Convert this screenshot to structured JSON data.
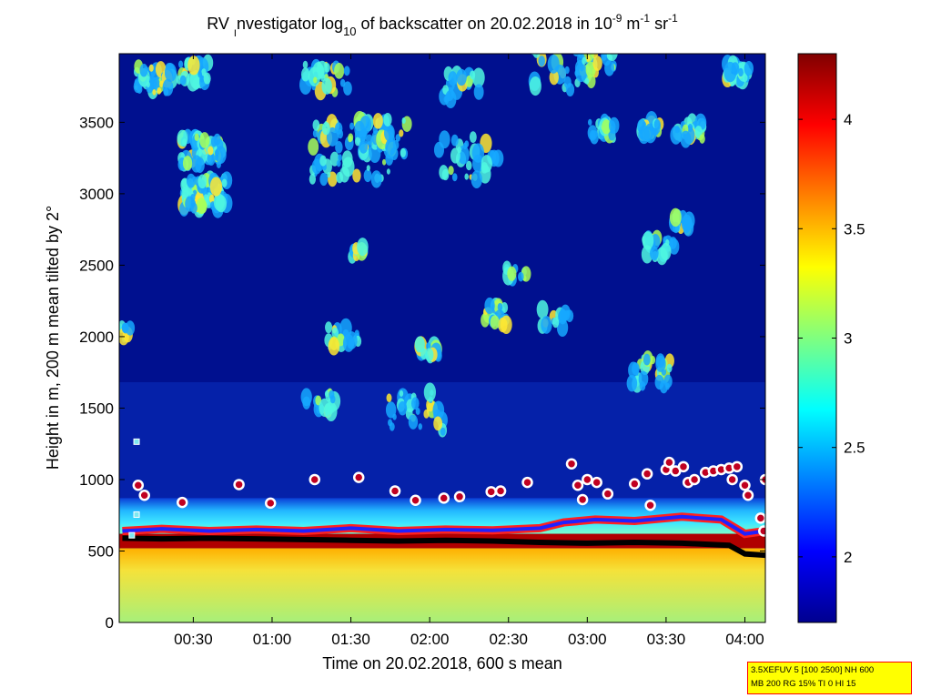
{
  "title": {
    "prefix": "RV ",
    "investigator_i": "I",
    "rest1": "nvestigator log",
    "sub10": "10",
    "rest2": " of backscatter on 20.02.2018 in 10",
    "exp1": "-9",
    "rest3": " m",
    "exp2": "-1",
    "rest4": " sr",
    "exp3": "-1"
  },
  "info_box": {
    "line1": "3.5XEFUV 5 [100 2500] NH 600",
    "line2": "MB 200 RG 15% TI 0 HI 15"
  },
  "chart_data": {
    "type": "heatmap",
    "title": "RV Investigator log10 of backscatter on 20.02.2018 in 10^-9 m^-1 sr^-1",
    "xlabel": "Time on 20.02.2018, 600 s mean",
    "ylabel": "Height in m, 200 m mean tilted by 2°",
    "x_tick_labels": [
      "00:30",
      "01:00",
      "01:30",
      "02:00",
      "02:30",
      "03:00",
      "03:30",
      "04:00"
    ],
    "x_ticks_hours": [
      0.5,
      1.0,
      1.5,
      2.0,
      2.5,
      3.0,
      3.5,
      4.0
    ],
    "xlim_hours": [
      0.03,
      4.13
    ],
    "ylim": [
      0,
      3980
    ],
    "y_ticks": [
      0,
      500,
      1000,
      1500,
      2000,
      2500,
      3000,
      3500
    ],
    "y_tick_labels": [
      "0",
      "500",
      "1000",
      "1500",
      "2000",
      "2500",
      "3000",
      "3500"
    ],
    "colorbar": {
      "clim": [
        1.7,
        4.3
      ],
      "ticks": [
        2,
        2.5,
        3,
        3.5,
        4
      ],
      "tick_labels": [
        "2",
        "2.5",
        "3",
        "3.5",
        "4"
      ],
      "colormap": "jet"
    },
    "layers": {
      "surface_layer_top_m": 520,
      "dense_layer_top_m": 620,
      "cyan_band_top_m": 870
    },
    "cloud_top_markers_m": [
      {
        "t": 0.15,
        "h": 960
      },
      {
        "t": 0.19,
        "h": 890
      },
      {
        "t": 0.43,
        "h": 840
      },
      {
        "t": 0.79,
        "h": 965
      },
      {
        "t": 0.99,
        "h": 835
      },
      {
        "t": 1.27,
        "h": 1000
      },
      {
        "t": 1.55,
        "h": 1015
      },
      {
        "t": 1.78,
        "h": 920
      },
      {
        "t": 1.91,
        "h": 855
      },
      {
        "t": 2.09,
        "h": 870
      },
      {
        "t": 2.19,
        "h": 880
      },
      {
        "t": 2.39,
        "h": 915
      },
      {
        "t": 2.45,
        "h": 920
      },
      {
        "t": 2.62,
        "h": 980
      },
      {
        "t": 2.9,
        "h": 1110
      },
      {
        "t": 2.94,
        "h": 960
      },
      {
        "t": 2.97,
        "h": 860
      },
      {
        "t": 3.0,
        "h": 1000
      },
      {
        "t": 3.06,
        "h": 980
      },
      {
        "t": 3.13,
        "h": 900
      },
      {
        "t": 3.3,
        "h": 970
      },
      {
        "t": 3.38,
        "h": 1040
      },
      {
        "t": 3.4,
        "h": 820
      },
      {
        "t": 3.5,
        "h": 1070
      },
      {
        "t": 3.52,
        "h": 1120
      },
      {
        "t": 3.56,
        "h": 1060
      },
      {
        "t": 3.61,
        "h": 1090
      },
      {
        "t": 3.64,
        "h": 980
      },
      {
        "t": 3.68,
        "h": 1000
      },
      {
        "t": 3.75,
        "h": 1050
      },
      {
        "t": 3.8,
        "h": 1060
      },
      {
        "t": 3.85,
        "h": 1070
      },
      {
        "t": 3.9,
        "h": 1080
      },
      {
        "t": 3.95,
        "h": 1090
      },
      {
        "t": 3.92,
        "h": 1000
      },
      {
        "t": 4.0,
        "h": 960
      },
      {
        "t": 4.02,
        "h": 890
      },
      {
        "t": 4.1,
        "h": 730
      },
      {
        "t": 4.12,
        "h": 640
      },
      {
        "t": 4.13,
        "h": 1000
      }
    ],
    "mixed_layer_height_m": [
      {
        "t": 0.05,
        "h": 590
      },
      {
        "t": 0.3,
        "h": 585
      },
      {
        "t": 0.6,
        "h": 590
      },
      {
        "t": 0.9,
        "h": 585
      },
      {
        "t": 1.2,
        "h": 580
      },
      {
        "t": 1.5,
        "h": 575
      },
      {
        "t": 1.8,
        "h": 570
      },
      {
        "t": 2.1,
        "h": 575
      },
      {
        "t": 2.4,
        "h": 570
      },
      {
        "t": 2.7,
        "h": 560
      },
      {
        "t": 3.0,
        "h": 555
      },
      {
        "t": 3.3,
        "h": 560
      },
      {
        "t": 3.6,
        "h": 555
      },
      {
        "t": 3.9,
        "h": 540
      },
      {
        "t": 4.0,
        "h": 480
      },
      {
        "t": 4.13,
        "h": 470
      }
    ],
    "cloud_base_m": [
      {
        "t": 0.05,
        "h": 640
      },
      {
        "t": 0.3,
        "h": 655
      },
      {
        "t": 0.6,
        "h": 640
      },
      {
        "t": 0.9,
        "h": 650
      },
      {
        "t": 1.2,
        "h": 640
      },
      {
        "t": 1.5,
        "h": 660
      },
      {
        "t": 1.8,
        "h": 640
      },
      {
        "t": 2.1,
        "h": 650
      },
      {
        "t": 2.4,
        "h": 645
      },
      {
        "t": 2.7,
        "h": 660
      },
      {
        "t": 2.85,
        "h": 700
      },
      {
        "t": 3.05,
        "h": 720
      },
      {
        "t": 3.3,
        "h": 710
      },
      {
        "t": 3.6,
        "h": 740
      },
      {
        "t": 3.85,
        "h": 720
      },
      {
        "t": 4.0,
        "h": 620
      },
      {
        "t": 4.13,
        "h": 640
      }
    ],
    "isolated_markers": [
      {
        "t": 0.14,
        "h": 1265
      },
      {
        "t": 0.14,
        "h": 755
      },
      {
        "t": 0.11,
        "h": 610
      }
    ]
  }
}
